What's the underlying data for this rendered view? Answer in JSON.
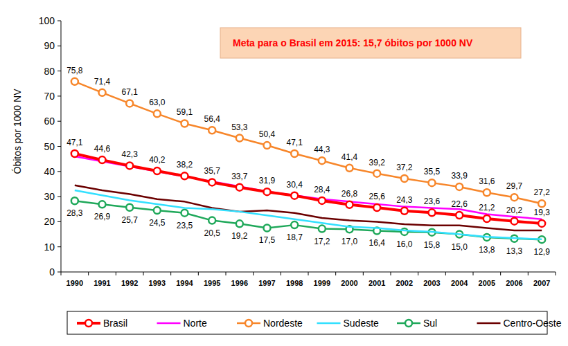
{
  "chart_data": {
    "type": "line",
    "annotation": "Meta para o Brasil em 2015: 15,7 óbitos por 1000 NV",
    "y_label": "Óbitos por 1000 NV",
    "categories": [
      "1990",
      "1991",
      "1992",
      "1993",
      "1994",
      "1995",
      "1996",
      "1997",
      "1998",
      "1999",
      "2000",
      "2001",
      "2002",
      "2003",
      "2004",
      "2005",
      "2006",
      "2007"
    ],
    "ylim": [
      0,
      100
    ],
    "yticks": [
      0,
      10,
      20,
      30,
      40,
      50,
      60,
      70,
      80,
      90,
      100
    ],
    "grid": false,
    "legend": "bottom",
    "series": [
      {
        "name": "Brasil",
        "color": "#ff0000",
        "marker": "circle",
        "data_labels": true,
        "values": [
          47.1,
          44.6,
          42.3,
          40.2,
          38.2,
          35.7,
          33.7,
          31.9,
          30.4,
          28.4,
          26.8,
          25.6,
          24.3,
          23.6,
          22.6,
          21.2,
          20.2,
          19.3
        ],
        "value_labels": [
          "47,1",
          "44,6",
          "42,3",
          "40,2",
          "38,2",
          "35,7",
          "33,7",
          "31,9",
          "30,4",
          "28,4",
          "26,8",
          "25,6",
          "24,3",
          "23,6",
          "22,6",
          "21,2",
          "20,2",
          "19,3"
        ]
      },
      {
        "name": "Norte",
        "color": "#ff00ff",
        "marker": "none",
        "values": [
          46,
          44,
          42,
          40,
          38,
          36,
          34,
          32,
          30.5,
          29,
          28,
          27,
          26,
          25.5,
          25,
          23,
          22,
          21
        ]
      },
      {
        "name": "Nordeste",
        "color": "#f7862a",
        "marker": "circle",
        "data_labels": true,
        "values": [
          75.8,
          71.4,
          67.1,
          63.0,
          59.1,
          56.4,
          53.3,
          50.4,
          47.1,
          44.3,
          41.4,
          39.2,
          37.2,
          35.5,
          33.9,
          31.6,
          29.7,
          27.2
        ],
        "value_labels": [
          "75,8",
          "71,4",
          "67,1",
          "63,0",
          "59,1",
          "56,4",
          "53,3",
          "50,4",
          "47,1",
          "44,3",
          "41,4",
          "39,2",
          "37,2",
          "35,5",
          "33,9",
          "31,6",
          "29,7",
          "27,2"
        ]
      },
      {
        "name": "Sudeste",
        "color": "#33e0ff",
        "marker": "none",
        "values": [
          32.5,
          30.5,
          28.5,
          27,
          25.5,
          25,
          24,
          22.5,
          21,
          19.5,
          18,
          17.5,
          16.5,
          16,
          15,
          14,
          13.5,
          13
        ]
      },
      {
        "name": "Sul",
        "color": "#1fa85a",
        "marker": "circle",
        "data_labels": true,
        "values": [
          28.3,
          26.9,
          25.7,
          24.5,
          23.5,
          20.5,
          19.2,
          17.5,
          18.7,
          17.2,
          17.0,
          16.4,
          16.0,
          15.8,
          15.0,
          13.8,
          13.3,
          12.9
        ],
        "value_labels": [
          "28,3",
          "26,9",
          "25,7",
          "24,5",
          "23,5",
          "20,5",
          "19,2",
          "17,5",
          "18,7",
          "17,2",
          "17,0",
          "16,4",
          "16,0",
          "15,8",
          "15,0",
          "13,8",
          "13,3",
          "12,9"
        ]
      },
      {
        "name": "Centro-Oeste",
        "color": "#6b0000",
        "marker": "none",
        "values": [
          34.5,
          32.5,
          31,
          29,
          28,
          25.5,
          24,
          24.5,
          23.5,
          21.5,
          20.5,
          20,
          19,
          18.5,
          18.5,
          17.5,
          16.5,
          16.5
        ]
      }
    ]
  }
}
